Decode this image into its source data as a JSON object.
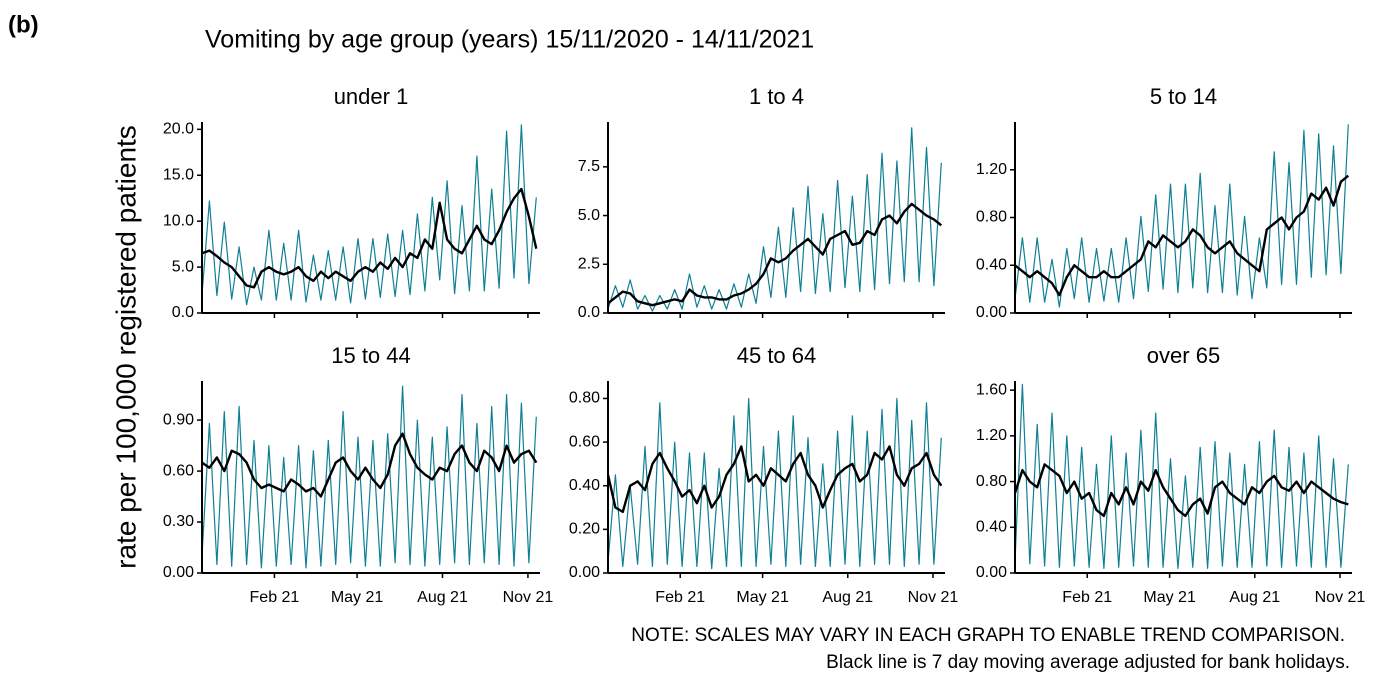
{
  "chart_data": {
    "type": "line",
    "panel_label": "(b)",
    "title": "Vomiting by age group (years) 15/11/2020 - 14/11/2021",
    "ylabel": "rate per 100,000 registered patients",
    "notes": [
      "NOTE: SCALES MAY VARY IN EACH GRAPH TO ENABLE TREND COMPARISON.",
      "Black line is 7 day moving average adjusted for bank holidays."
    ],
    "x": [
      0,
      8,
      16,
      24,
      32,
      40,
      48,
      56,
      64,
      72,
      80,
      88,
      96,
      104,
      112,
      120,
      128,
      136,
      144,
      152,
      160,
      168,
      176,
      184,
      192,
      200,
      208,
      216,
      224,
      232,
      240,
      248,
      256,
      264,
      272,
      280,
      288,
      296,
      304,
      312,
      320,
      328,
      336,
      344,
      352,
      360
    ],
    "xlim": [
      0,
      364
    ],
    "xticks": [
      {
        "value": 78,
        "label": "Feb 21"
      },
      {
        "value": 167,
        "label": "May 21"
      },
      {
        "value": 259,
        "label": "Aug 21"
      },
      {
        "value": 351,
        "label": "Nov 21"
      }
    ],
    "facets": [
      {
        "title": "under 1",
        "ylim": [
          0,
          20.8
        ],
        "yticks": [
          {
            "value": 0,
            "label": "0.0"
          },
          {
            "value": 5,
            "label": "5.0"
          },
          {
            "value": 10,
            "label": "10.0"
          },
          {
            "value": 15,
            "label": "15.0"
          },
          {
            "value": 20,
            "label": "20.0"
          }
        ],
        "series": [
          {
            "color": "#0f7f95",
            "values": [
              2.0,
              12.2,
              1.9,
              9.9,
              1.5,
              7.2,
              0.9,
              5.0,
              1.4,
              9.0,
              1.4,
              7.6,
              1.4,
              9.0,
              1.2,
              6.3,
              1.4,
              6.8,
              1.4,
              7.2,
              1.1,
              8.1,
              1.5,
              8.1,
              1.7,
              8.6,
              1.8,
              9.0,
              2.0,
              10.8,
              2.4,
              12.6,
              3.6,
              14.4,
              2.1,
              11.7,
              2.4,
              17.1,
              2.4,
              13.5,
              2.7,
              19.8,
              3.8,
              20.5,
              3.2,
              12.6
            ]
          },
          {
            "color": "#000000",
            "values": [
              6.5,
              6.8,
              6.2,
              5.5,
              5.0,
              4.0,
              3.0,
              2.8,
              4.5,
              5.0,
              4.5,
              4.2,
              4.5,
              5.0,
              4.0,
              3.5,
              4.5,
              3.8,
              4.5,
              4.0,
              3.5,
              4.5,
              5.0,
              4.5,
              5.5,
              4.8,
              6.0,
              5.0,
              6.5,
              6.0,
              8.0,
              7.0,
              12.0,
              8.0,
              7.0,
              6.5,
              8.0,
              9.5,
              8.0,
              7.5,
              9.0,
              11.0,
              12.5,
              13.5,
              10.5,
              7.0
            ]
          }
        ]
      },
      {
        "title": "1 to 4",
        "ylim": [
          0,
          9.8
        ],
        "yticks": [
          {
            "value": 0,
            "label": "0.0"
          },
          2.5,
          {
            "value": 5,
            "label": "5.0"
          },
          7.5
        ],
        "series": [
          {
            "color": "#0f7f95",
            "values": [
              0.2,
              1.4,
              0.3,
              1.7,
              0.2,
              0.9,
              0.1,
              0.9,
              0.2,
              1.2,
              0.2,
              2.0,
              0.3,
              1.4,
              0.2,
              1.2,
              0.2,
              1.5,
              0.3,
              2.0,
              0.5,
              3.4,
              0.8,
              4.4,
              0.8,
              5.4,
              1.1,
              6.5,
              1.0,
              5.1,
              1.1,
              6.8,
              1.3,
              6.0,
              1.1,
              7.1,
              1.2,
              8.2,
              1.5,
              7.8,
              1.6,
              9.5,
              1.6,
              8.5,
              1.4,
              7.7
            ]
          },
          {
            "color": "#000000",
            "values": [
              0.5,
              0.8,
              1.1,
              1.0,
              0.6,
              0.5,
              0.4,
              0.5,
              0.6,
              0.7,
              0.6,
              1.2,
              0.9,
              0.8,
              0.8,
              0.7,
              0.7,
              0.9,
              1.0,
              1.2,
              1.5,
              2.0,
              2.8,
              2.6,
              2.8,
              3.2,
              3.5,
              3.8,
              3.4,
              3.0,
              3.8,
              4.0,
              4.2,
              3.5,
              3.6,
              4.2,
              4.0,
              4.8,
              5.0,
              4.6,
              5.2,
              5.6,
              5.3,
              5.0,
              4.8,
              4.5
            ]
          }
        ]
      },
      {
        "title": "5 to 14",
        "ylim": [
          0,
          1.6
        ],
        "yticks": [
          {
            "value": 0,
            "label": "0.00"
          },
          {
            "value": 0.4,
            "label": "0.40"
          },
          {
            "value": 0.8,
            "label": "0.80"
          },
          {
            "value": 1.2,
            "label": "1.20"
          }
        ],
        "series": [
          {
            "color": "#0f7f95",
            "values": [
              0.12,
              0.63,
              0.09,
              0.63,
              0.09,
              0.45,
              0.05,
              0.54,
              0.12,
              0.63,
              0.09,
              0.54,
              0.1,
              0.54,
              0.09,
              0.63,
              0.12,
              0.81,
              0.18,
              0.99,
              0.2,
              1.08,
              0.17,
              1.08,
              0.21,
              1.17,
              0.17,
              0.9,
              0.17,
              1.08,
              0.15,
              0.81,
              0.12,
              0.63,
              0.21,
              1.35,
              0.24,
              1.26,
              0.24,
              1.53,
              0.3,
              1.5,
              0.32,
              1.4,
              0.33,
              1.58
            ]
          },
          {
            "color": "#000000",
            "values": [
              0.4,
              0.35,
              0.3,
              0.35,
              0.3,
              0.25,
              0.15,
              0.3,
              0.4,
              0.35,
              0.3,
              0.3,
              0.35,
              0.3,
              0.3,
              0.35,
              0.4,
              0.45,
              0.6,
              0.55,
              0.65,
              0.6,
              0.55,
              0.6,
              0.7,
              0.65,
              0.55,
              0.5,
              0.55,
              0.6,
              0.5,
              0.45,
              0.4,
              0.35,
              0.7,
              0.75,
              0.8,
              0.7,
              0.8,
              0.85,
              1.0,
              0.95,
              1.05,
              0.9,
              1.1,
              1.15
            ]
          }
        ]
      },
      {
        "title": "15 to 44",
        "ylim": [
          0,
          1.13
        ],
        "yticks": [
          {
            "value": 0,
            "label": "0.00"
          },
          {
            "value": 0.3,
            "label": "0.30"
          },
          {
            "value": 0.6,
            "label": "0.60"
          },
          {
            "value": 0.9,
            "label": "0.90"
          }
        ],
        "series": [
          {
            "color": "#0f7f95",
            "values": [
              0.1,
              0.88,
              0.05,
              0.95,
              0.04,
              0.98,
              0.05,
              0.78,
              0.03,
              0.75,
              0.04,
              0.68,
              0.05,
              0.75,
              0.03,
              0.72,
              0.04,
              0.78,
              0.05,
              0.95,
              0.06,
              0.8,
              0.04,
              0.78,
              0.04,
              0.82,
              0.06,
              1.1,
              0.05,
              0.9,
              0.04,
              0.8,
              0.05,
              0.86,
              0.06,
              1.05,
              0.05,
              0.88,
              0.06,
              0.98,
              0.05,
              1.05,
              0.04,
              1.0,
              0.06,
              0.92
            ]
          },
          {
            "color": "#000000",
            "values": [
              0.65,
              0.62,
              0.68,
              0.6,
              0.72,
              0.7,
              0.65,
              0.55,
              0.5,
              0.52,
              0.5,
              0.48,
              0.55,
              0.52,
              0.48,
              0.5,
              0.45,
              0.55,
              0.65,
              0.68,
              0.6,
              0.55,
              0.62,
              0.55,
              0.5,
              0.58,
              0.75,
              0.82,
              0.7,
              0.62,
              0.58,
              0.55,
              0.62,
              0.6,
              0.7,
              0.75,
              0.65,
              0.6,
              0.72,
              0.68,
              0.6,
              0.75,
              0.65,
              0.7,
              0.72,
              0.65
            ]
          }
        ]
      },
      {
        "title": "45 to 64",
        "ylim": [
          0,
          0.88
        ],
        "yticks": [
          {
            "value": 0,
            "label": "0.00"
          },
          {
            "value": 0.2,
            "label": "0.20"
          },
          {
            "value": 0.4,
            "label": "0.40"
          },
          {
            "value": 0.6,
            "label": "0.60"
          },
          {
            "value": 0.8,
            "label": "0.80"
          }
        ],
        "series": [
          {
            "color": "#0f7f95",
            "values": [
              0.05,
              0.45,
              0.03,
              0.4,
              0.04,
              0.58,
              0.03,
              0.78,
              0.04,
              0.6,
              0.03,
              0.55,
              0.03,
              0.55,
              0.02,
              0.48,
              0.03,
              0.72,
              0.03,
              0.8,
              0.03,
              0.58,
              0.04,
              0.65,
              0.03,
              0.72,
              0.04,
              0.62,
              0.03,
              0.5,
              0.03,
              0.65,
              0.04,
              0.72,
              0.03,
              0.65,
              0.04,
              0.75,
              0.04,
              0.8,
              0.03,
              0.7,
              0.04,
              0.78,
              0.04,
              0.62
            ]
          },
          {
            "color": "#000000",
            "values": [
              0.45,
              0.3,
              0.28,
              0.4,
              0.42,
              0.38,
              0.5,
              0.55,
              0.48,
              0.42,
              0.35,
              0.38,
              0.32,
              0.4,
              0.3,
              0.35,
              0.45,
              0.5,
              0.58,
              0.42,
              0.45,
              0.4,
              0.48,
              0.45,
              0.42,
              0.5,
              0.55,
              0.45,
              0.4,
              0.3,
              0.38,
              0.45,
              0.48,
              0.5,
              0.42,
              0.45,
              0.55,
              0.52,
              0.58,
              0.45,
              0.4,
              0.48,
              0.5,
              0.55,
              0.45,
              0.4
            ]
          }
        ]
      },
      {
        "title": "over 65",
        "ylim": [
          0,
          1.68
        ],
        "yticks": [
          {
            "value": 0,
            "label": "0.00"
          },
          {
            "value": 0.4,
            "label": "0.40"
          },
          {
            "value": 0.8,
            "label": "0.80"
          },
          {
            "value": 1.2,
            "label": "1.20"
          },
          {
            "value": 1.6,
            "label": "1.60"
          }
        ],
        "series": [
          {
            "color": "#0f7f95",
            "values": [
              0.1,
              1.65,
              0.08,
              1.3,
              0.06,
              1.4,
              0.05,
              1.2,
              0.06,
              1.1,
              0.05,
              0.95,
              0.04,
              1.2,
              0.05,
              1.05,
              0.06,
              1.25,
              0.05,
              1.4,
              0.05,
              1.0,
              0.04,
              0.85,
              0.05,
              1.1,
              0.04,
              1.15,
              0.06,
              1.05,
              0.05,
              0.95,
              0.05,
              1.15,
              0.06,
              1.25,
              0.05,
              1.1,
              0.06,
              1.05,
              0.05,
              1.2,
              0.05,
              1.0,
              0.05,
              0.95
            ]
          },
          {
            "color": "#000000",
            "values": [
              0.7,
              0.9,
              0.8,
              0.75,
              0.95,
              0.9,
              0.85,
              0.7,
              0.8,
              0.65,
              0.7,
              0.55,
              0.5,
              0.7,
              0.6,
              0.75,
              0.6,
              0.8,
              0.72,
              0.9,
              0.75,
              0.65,
              0.55,
              0.5,
              0.6,
              0.65,
              0.52,
              0.75,
              0.8,
              0.7,
              0.65,
              0.6,
              0.75,
              0.7,
              0.8,
              0.85,
              0.75,
              0.72,
              0.8,
              0.7,
              0.8,
              0.75,
              0.7,
              0.65,
              0.62,
              0.6
            ]
          }
        ]
      }
    ]
  }
}
